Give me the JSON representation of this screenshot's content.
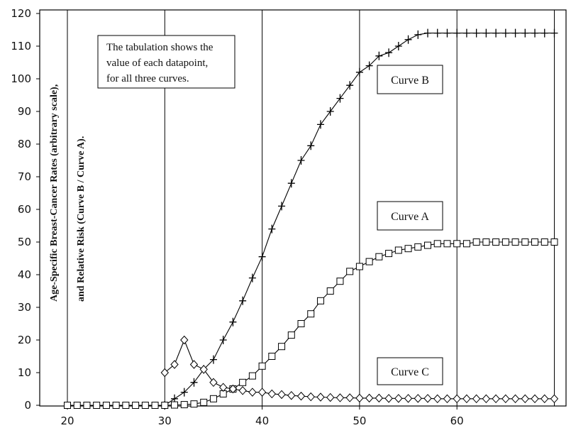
{
  "chart_data": {
    "type": "line",
    "x_ticks": [
      20,
      30,
      40,
      50,
      60
    ],
    "y_ticks": [
      0,
      10,
      20,
      30,
      40,
      50,
      60,
      70,
      80,
      90,
      100,
      110,
      120
    ],
    "xlim": [
      19.5,
      70.5
    ],
    "ylim": [
      0,
      120
    ],
    "grid": "vertical lines at x = 20, 30, 40, 50, 60, 70",
    "ylabel_lines": [
      "Age-Specific Breast-Cancer Rates (arbitrary scale),",
      "and Relative Risk (Curve B / Curve A)."
    ],
    "note_lines": [
      "The tabulation shows the",
      "value of each datapoint,",
      "for all three curves."
    ],
    "series": [
      {
        "name": "Curve B",
        "marker": "plus",
        "x": [
          30,
          31,
          32,
          33,
          34,
          35,
          36,
          37,
          38,
          39,
          40,
          41,
          42,
          43,
          44,
          45,
          46,
          47,
          48,
          49,
          50,
          51,
          52,
          53,
          54,
          55,
          56,
          57,
          58,
          59,
          60,
          61,
          62,
          63,
          64,
          65,
          66,
          67,
          68,
          69,
          70
        ],
        "values": [
          0,
          2,
          4,
          7,
          11,
          14,
          20,
          25.5,
          32,
          39,
          45.5,
          54,
          61,
          68,
          75,
          79.5,
          86,
          90,
          94,
          98,
          102,
          104,
          107,
          108,
          110,
          112,
          113.5,
          114,
          114,
          114,
          114,
          114,
          114,
          114,
          114,
          114,
          114,
          114,
          114,
          114,
          114
        ]
      },
      {
        "name": "Curve A",
        "marker": "square",
        "x": [
          20,
          21,
          22,
          23,
          24,
          25,
          26,
          27,
          28,
          29,
          30,
          31,
          32,
          33,
          34,
          35,
          36,
          37,
          38,
          39,
          40,
          41,
          42,
          43,
          44,
          45,
          46,
          47,
          48,
          49,
          50,
          51,
          52,
          53,
          54,
          55,
          56,
          57,
          58,
          59,
          60,
          61,
          62,
          63,
          64,
          65,
          66,
          67,
          68,
          69,
          70
        ],
        "values": [
          0,
          0,
          0,
          0,
          0,
          0,
          0,
          0,
          0,
          0,
          0,
          0.1,
          0.2,
          0.4,
          0.9,
          2,
          3.5,
          5,
          7,
          9,
          12,
          15,
          18,
          21.5,
          25,
          28,
          32,
          35,
          38,
          41,
          42.5,
          44,
          45.5,
          46.5,
          47.5,
          48,
          48.5,
          49,
          49.5,
          49.5,
          49.5,
          49.5,
          50,
          50,
          50,
          50,
          50,
          50,
          50,
          50,
          50
        ]
      },
      {
        "name": "Curve C",
        "marker": "diamond",
        "x": [
          30,
          31,
          32,
          33,
          34,
          35,
          36,
          37,
          38,
          39,
          40,
          41,
          42,
          43,
          44,
          45,
          46,
          47,
          48,
          49,
          50,
          51,
          52,
          53,
          54,
          55,
          56,
          57,
          58,
          59,
          60,
          61,
          62,
          63,
          64,
          65,
          66,
          67,
          68,
          69,
          70
        ],
        "values": [
          10,
          12.5,
          20,
          12.5,
          11,
          7,
          5.5,
          5,
          4.5,
          4,
          4,
          3.5,
          3.3,
          3,
          2.8,
          2.6,
          2.5,
          2.4,
          2.3,
          2.3,
          2.2,
          2.2,
          2.2,
          2.1,
          2.1,
          2.1,
          2.1,
          2.1,
          2,
          2,
          2,
          2,
          2,
          2,
          2,
          2,
          2,
          2,
          2,
          2,
          2
        ]
      }
    ]
  },
  "legend_labels": [
    "Curve B",
    "Curve A",
    "Curve C"
  ]
}
